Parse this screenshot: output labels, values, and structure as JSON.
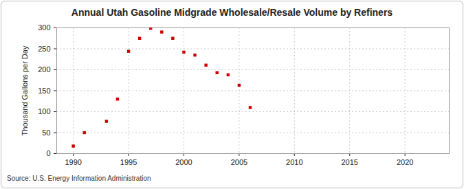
{
  "chart_data": {
    "type": "scatter",
    "title": "Annual Utah Gasoline Midgrade Wholesale/Resale Volume by Refiners",
    "y_label": "Thousand Gallons per Day",
    "source": "Source: U.S. Energy Information Administration",
    "x": [
      1990,
      1991,
      1993,
      1994,
      1995,
      1996,
      1997,
      1998,
      1999,
      2000,
      2001,
      2002,
      2003,
      2004,
      2005,
      2006
    ],
    "values": [
      18,
      50,
      77,
      130,
      244,
      275,
      299,
      290,
      275,
      242,
      235,
      211,
      193,
      188,
      163,
      110
    ],
    "color": "#cc0000",
    "marker": "square",
    "xlim": [
      1988.5,
      2024
    ],
    "xticks": [
      1990,
      1995,
      2000,
      2005,
      2010,
      2015,
      2020
    ],
    "ylim": [
      0,
      300
    ],
    "yticks": [
      0,
      50,
      100,
      150,
      200,
      250,
      300
    ],
    "grid": true
  }
}
